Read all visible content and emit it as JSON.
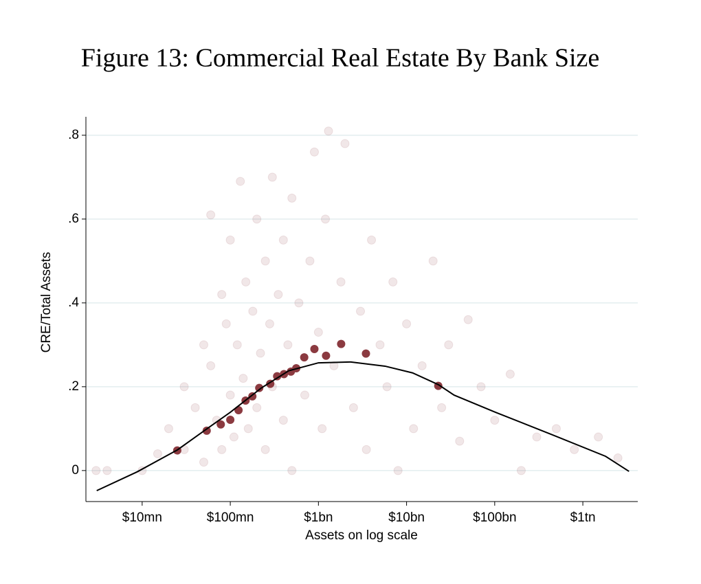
{
  "chart_data": {
    "type": "scatter",
    "title": "Figure 13: Commercial Real Estate By Bank Size",
    "x_label": "Assets on log scale",
    "y_label": "CRE/Total Assets",
    "x_scale": "log",
    "xlim": [
      2300000,
      4200000000000
    ],
    "xticks": [
      {
        "value": 10000000,
        "label": "$10mn"
      },
      {
        "value": 100000000,
        "label": "$100mn"
      },
      {
        "value": 1000000000,
        "label": "$1bn"
      },
      {
        "value": 10000000000,
        "label": "$10bn"
      },
      {
        "value": 100000000000,
        "label": "$100bn"
      },
      {
        "value": 1000000000000,
        "label": "$1tn"
      }
    ],
    "ylim": [
      -0.074,
      0.844
    ],
    "yticks": [
      0,
      {
        "value": 0.2,
        "label": ".2"
      },
      {
        "value": 0.4,
        "label": ".4"
      },
      {
        "value": 0.6,
        "label": ".6"
      },
      {
        "value": 0.8,
        "label": ".8"
      }
    ],
    "grid": true,
    "series": [
      {
        "type": "scatter",
        "color": "#8b3a40",
        "alpha": 0.12,
        "size": 6,
        "x": [
          3000000.0,
          4000000.0,
          10000000.0,
          15000000.0,
          20000000.0,
          30000000.0,
          30000000.0,
          40000000.0,
          50000000.0,
          50000000.0,
          60000000.0,
          60000000.0,
          70000000.0,
          80000000.0,
          80000000.0,
          90000000.0,
          100000000.0,
          100000000.0,
          110000000.0,
          120000000.0,
          130000000.0,
          140000000.0,
          150000000.0,
          160000000.0,
          180000000.0,
          200000000.0,
          200000000.0,
          220000000.0,
          250000000.0,
          250000000.0,
          280000000.0,
          300000000.0,
          300000000.0,
          350000000.0,
          400000000.0,
          400000000.0,
          450000000.0,
          500000000.0,
          500000000.0,
          600000000.0,
          700000000.0,
          800000000.0,
          900000000.0,
          1000000000.0,
          1100000000.0,
          1200000000.0,
          1300000000.0,
          1500000000.0,
          1800000000.0,
          2000000000.0,
          2500000000.0,
          3000000000.0,
          3500000000.0,
          4000000000.0,
          5000000000.0,
          6000000000.0,
          7000000000.0,
          8000000000.0,
          10000000000.0,
          12000000000.0,
          15000000000.0,
          20000000000.0,
          25000000000.0,
          30000000000.0,
          40000000000.0,
          50000000000.0,
          70000000000.0,
          100000000000.0,
          150000000000.0,
          200000000000.0,
          300000000000.0,
          500000000000.0,
          800000000000.0,
          1500000000000.0,
          2500000000000.0
        ],
        "values": [
          0,
          0,
          0,
          0.04,
          0.1,
          0.05,
          0.2,
          0.15,
          0.3,
          0.02,
          0.61,
          0.25,
          0.12,
          0.42,
          0.05,
          0.35,
          0.18,
          0.55,
          0.08,
          0.3,
          0.69,
          0.22,
          0.45,
          0.1,
          0.38,
          0.6,
          0.15,
          0.28,
          0.5,
          0.05,
          0.35,
          0.7,
          0.2,
          0.42,
          0.12,
          0.55,
          0.3,
          0.65,
          0,
          0.4,
          0.18,
          0.5,
          0.76,
          0.33,
          0.1,
          0.6,
          0.81,
          0.25,
          0.45,
          0.78,
          0.15,
          0.38,
          0.05,
          0.55,
          0.3,
          0.2,
          0.45,
          0,
          0.35,
          0.1,
          0.25,
          0.5,
          0.15,
          0.3,
          0.07,
          0.36,
          0.2,
          0.12,
          0.23,
          0,
          0.08,
          0.1,
          0.05,
          0.08,
          0.03
        ]
      },
      {
        "type": "scatter",
        "color": "#8b3a40",
        "alpha": 1,
        "size": 6,
        "x": [
          25000000.0,
          54000000.0,
          78000000.0,
          100000000.0,
          124000000.0,
          149000000.0,
          178000000.0,
          213000000.0,
          284000000.0,
          340000000.0,
          406000000.0,
          487000000.0,
          560000000.0,
          690000000.0,
          900000000.0,
          1220000000.0,
          1810000000.0,
          3460000000.0,
          22900000000.0
        ],
        "values": [
          0.048,
          0.095,
          0.11,
          0.121,
          0.144,
          0.167,
          0.177,
          0.197,
          0.207,
          0.225,
          0.23,
          0.236,
          0.244,
          0.27,
          0.29,
          0.274,
          0.302,
          0.279,
          0.202
        ]
      },
      {
        "type": "line",
        "color": "#000000",
        "x": [
          3050000.0,
          8800000.0,
          25000000.0,
          53000000.0,
          100000000.0,
          225000000.0,
          460000000.0,
          1000000000.0,
          2330000000.0,
          5700000000.0,
          11700000000.0,
          22900000000.0,
          34600000000.0,
          102000000000.0,
          430000000000.0,
          1810000000000.0,
          3340000000000.0
        ],
        "values": [
          -0.048,
          -0.003,
          0.049,
          0.098,
          0.139,
          0.197,
          0.238,
          0.257,
          0.259,
          0.249,
          0.233,
          0.205,
          0.18,
          0.139,
          0.087,
          0.034,
          -0.002
        ]
      }
    ]
  }
}
